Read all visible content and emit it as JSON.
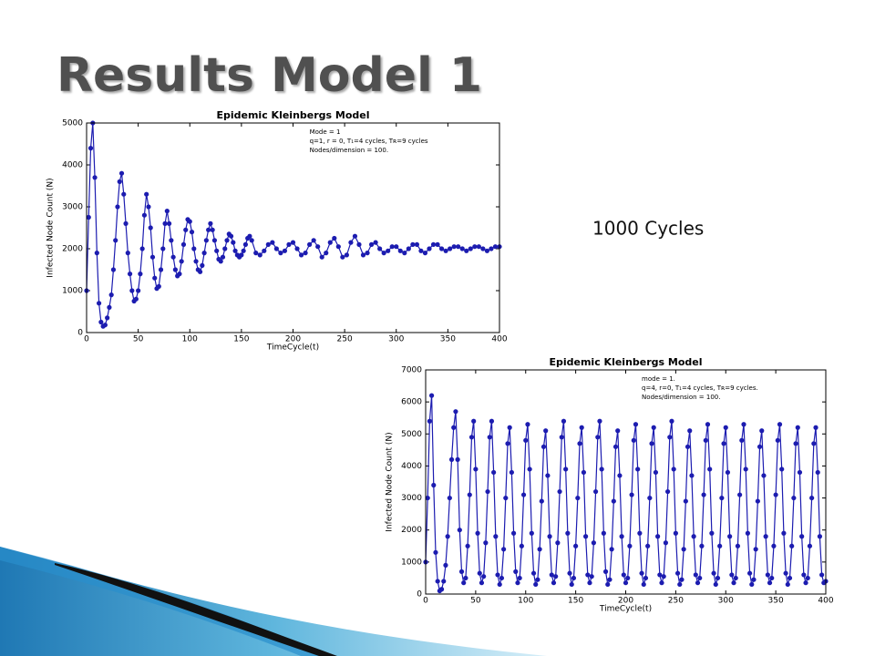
{
  "title": "Results Model 1",
  "note": "1000 Cycles",
  "chart_data": [
    {
      "type": "line",
      "title": "Epidemic Kleinbergs Model",
      "annotations": [
        "Mode = 1",
        "q=1, r = 0, T₁=4 cycles, Tʀ=9 cycles",
        "Nodes/dimension = 100."
      ],
      "x_label": "TimeCycle(t)",
      "y_label": "Infected Node Count (N)",
      "xlim": [
        0,
        400
      ],
      "xticks": [
        0,
        50,
        100,
        150,
        200,
        250,
        300,
        350,
        400
      ],
      "ylim": [
        0,
        5000
      ],
      "yticks": [
        0,
        1000,
        2000,
        3000,
        4000,
        5000
      ],
      "x": [
        0,
        2,
        4,
        6,
        8,
        10,
        12,
        14,
        16,
        18,
        20,
        22,
        24,
        26,
        28,
        30,
        32,
        34,
        36,
        38,
        40,
        42,
        44,
        46,
        48,
        50,
        52,
        54,
        56,
        58,
        60,
        62,
        64,
        66,
        68,
        70,
        72,
        74,
        76,
        78,
        80,
        82,
        84,
        86,
        88,
        90,
        92,
        94,
        96,
        98,
        100,
        102,
        104,
        106,
        108,
        110,
        112,
        114,
        116,
        118,
        120,
        122,
        124,
        126,
        128,
        130,
        132,
        134,
        136,
        138,
        140,
        142,
        144,
        146,
        148,
        150,
        152,
        154,
        156,
        158,
        160,
        164,
        168,
        172,
        176,
        180,
        184,
        188,
        192,
        196,
        200,
        204,
        208,
        212,
        216,
        220,
        224,
        228,
        232,
        236,
        240,
        244,
        248,
        252,
        256,
        260,
        264,
        268,
        272,
        276,
        280,
        284,
        288,
        292,
        296,
        300,
        304,
        308,
        312,
        316,
        320,
        324,
        328,
        332,
        336,
        340,
        344,
        348,
        352,
        356,
        360,
        364,
        368,
        372,
        376,
        380,
        384,
        388,
        392,
        396,
        400
      ],
      "series": [
        {
          "name": "Infected",
          "color": "#1c1cb0",
          "values": [
            1000,
            2750,
            4400,
            5000,
            3700,
            1900,
            700,
            250,
            150,
            180,
            350,
            600,
            900,
            1500,
            2200,
            3000,
            3600,
            3800,
            3300,
            2600,
            1900,
            1400,
            1000,
            750,
            800,
            1000,
            1400,
            2000,
            2800,
            3300,
            3000,
            2500,
            1800,
            1300,
            1050,
            1100,
            1500,
            2000,
            2600,
            2900,
            2600,
            2200,
            1800,
            1500,
            1350,
            1400,
            1700,
            2100,
            2450,
            2700,
            2650,
            2400,
            2000,
            1700,
            1500,
            1450,
            1600,
            1900,
            2200,
            2450,
            2600,
            2450,
            2200,
            1950,
            1750,
            1700,
            1800,
            2000,
            2200,
            2350,
            2300,
            2150,
            1950,
            1850,
            1800,
            1850,
            1950,
            2100,
            2250,
            2300,
            2200,
            1900,
            1850,
            1950,
            2100,
            2150,
            2000,
            1900,
            1950,
            2100,
            2150,
            2000,
            1850,
            1900,
            2100,
            2200,
            2050,
            1800,
            1900,
            2150,
            2250,
            2050,
            1800,
            1850,
            2150,
            2300,
            2100,
            1850,
            1900,
            2100,
            2150,
            2000,
            1900,
            1950,
            2050,
            2050,
            1950,
            1900,
            2000,
            2100,
            2100,
            1950,
            1900,
            2000,
            2100,
            2100,
            2000,
            1950,
            2000,
            2050,
            2050,
            2000,
            1950,
            2000,
            2050,
            2050,
            2000,
            1950,
            2000,
            2050,
            2050
          ]
        }
      ]
    },
    {
      "type": "line",
      "title": "Epidemic Kleinbergs Model",
      "annotations": [
        "mode = 1.",
        "q=4, r=0, T₁=4 cycles, Tʀ=9 cycles.",
        "Nodes/dimension = 100."
      ],
      "x_label": "TimeCycle(t)",
      "y_label": "Infected Node Count (N)",
      "xlim": [
        0,
        400
      ],
      "xticks": [
        0,
        50,
        100,
        150,
        200,
        250,
        300,
        350,
        400
      ],
      "ylim": [
        0,
        7000
      ],
      "yticks": [
        0,
        1000,
        2000,
        3000,
        4000,
        5000,
        6000,
        7000
      ],
      "x": [
        0,
        2,
        4,
        6,
        8,
        10,
        12,
        14,
        16,
        18,
        20,
        22,
        24,
        26,
        28,
        30,
        32,
        34,
        36,
        38,
        40,
        42,
        44,
        46,
        48,
        50,
        52,
        54,
        56,
        58,
        60,
        62,
        64,
        66,
        68,
        70,
        72,
        74,
        76,
        78,
        80,
        82,
        84,
        86,
        88,
        90,
        92,
        94,
        96,
        98,
        100,
        102,
        104,
        106,
        108,
        110,
        112,
        114,
        116,
        118,
        120,
        122,
        124,
        126,
        128,
        130,
        132,
        134,
        136,
        138,
        140,
        142,
        144,
        146,
        148,
        150,
        152,
        154,
        156,
        158,
        160,
        162,
        164,
        166,
        168,
        170,
        172,
        174,
        176,
        178,
        180,
        182,
        184,
        186,
        188,
        190,
        192,
        194,
        196,
        198,
        200,
        202,
        204,
        206,
        208,
        210,
        212,
        214,
        216,
        218,
        220,
        222,
        224,
        226,
        228,
        230,
        232,
        234,
        236,
        238,
        240,
        242,
        244,
        246,
        248,
        250,
        252,
        254,
        256,
        258,
        260,
        262,
        264,
        266,
        268,
        270,
        272,
        274,
        276,
        278,
        280,
        282,
        284,
        286,
        288,
        290,
        292,
        294,
        296,
        298,
        300,
        302,
        304,
        306,
        308,
        310,
        312,
        314,
        316,
        318,
        320,
        322,
        324,
        326,
        328,
        330,
        332,
        334,
        336,
        338,
        340,
        342,
        344,
        346,
        348,
        350,
        352,
        354,
        356,
        358,
        360,
        362,
        364,
        366,
        368,
        370,
        372,
        374,
        376,
        378,
        380,
        382,
        384,
        386,
        388,
        390,
        392,
        394,
        396,
        398,
        400
      ],
      "series": [
        {
          "name": "Infected",
          "color": "#1c1cb0",
          "values": [
            1000,
            3000,
            5400,
            6200,
            3400,
            1300,
            400,
            100,
            150,
            400,
            900,
            1800,
            3000,
            4200,
            5200,
            5700,
            4200,
            2000,
            700,
            350,
            500,
            1500,
            3100,
            4900,
            5400,
            3900,
            1900,
            650,
            350,
            550,
            1600,
            3200,
            4900,
            5400,
            3800,
            1800,
            600,
            300,
            500,
            1400,
            3000,
            4700,
            5200,
            3800,
            1900,
            700,
            350,
            500,
            1500,
            3100,
            4800,
            5300,
            3900,
            1900,
            650,
            300,
            450,
            1400,
            2900,
            4600,
            5100,
            3700,
            1800,
            600,
            350,
            550,
            1600,
            3200,
            4900,
            5400,
            3900,
            1900,
            650,
            300,
            500,
            1500,
            3000,
            4700,
            5200,
            3800,
            1800,
            600,
            350,
            550,
            1600,
            3200,
            4900,
            5400,
            3900,
            1900,
            700,
            300,
            450,
            1400,
            2900,
            4600,
            5100,
            3700,
            1800,
            600,
            350,
            500,
            1500,
            3100,
            4800,
            5300,
            3900,
            1900,
            650,
            300,
            500,
            1500,
            3000,
            4700,
            5200,
            3800,
            1800,
            600,
            350,
            550,
            1600,
            3200,
            4900,
            5400,
            3900,
            1900,
            650,
            300,
            450,
            1400,
            2900,
            4600,
            5100,
            3700,
            1800,
            600,
            350,
            500,
            1500,
            3100,
            4800,
            5300,
            3900,
            1900,
            650,
            300,
            500,
            1500,
            3000,
            4700,
            5200,
            3800,
            1800,
            600,
            350,
            500,
            1500,
            3100,
            4800,
            5300,
            3900,
            1900,
            650,
            300,
            450,
            1400,
            2900,
            4600,
            5100,
            3700,
            1800,
            600,
            350,
            500,
            1500,
            3100,
            4800,
            5300,
            3900,
            1900,
            650,
            300,
            500,
            1500,
            3000,
            4700,
            5200,
            3800,
            1800,
            600,
            350,
            500,
            1500,
            3000,
            4700,
            5200,
            3800,
            1800,
            600,
            350,
            400
          ]
        }
      ]
    }
  ]
}
